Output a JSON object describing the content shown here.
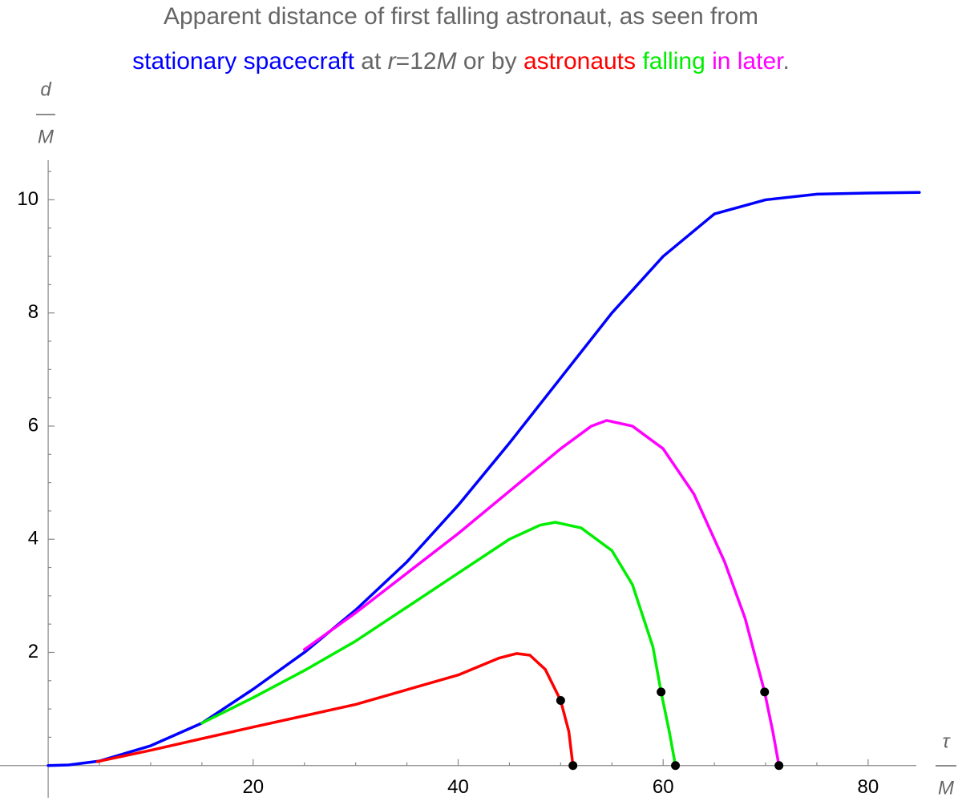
{
  "chart_data": {
    "type": "line",
    "title_lines": [
      [
        {
          "text": "Apparent distance of first falling astronaut, as seen from",
          "color": "#666666",
          "italic": false
        }
      ],
      [
        {
          "text": "stationary spacecraft",
          "color": "#0000ff",
          "italic": false
        },
        {
          "text": " at ",
          "color": "#666666",
          "italic": false
        },
        {
          "text": "r",
          "color": "#666666",
          "italic": true
        },
        {
          "text": "=12",
          "color": "#666666",
          "italic": false
        },
        {
          "text": "M",
          "color": "#666666",
          "italic": true
        },
        {
          "text": " or by ",
          "color": "#666666",
          "italic": false
        },
        {
          "text": "astronauts",
          "color": "#ff0000",
          "italic": false
        },
        {
          "text": " falling",
          "color": "#00ee00",
          "italic": false
        },
        {
          "text": " in later",
          "color": "#ff00ff",
          "italic": false
        },
        {
          "text": ".",
          "color": "#666666",
          "italic": false
        }
      ]
    ],
    "y_label": {
      "numerator": "d",
      "denominator": "M"
    },
    "x_label": {
      "numerator": "τ",
      "denominator": "M"
    },
    "xlim": [
      -4.7,
      84.7
    ],
    "ylim": [
      -0.57,
      10.7
    ],
    "xticks": [
      20,
      40,
      60,
      80
    ],
    "yticks": [
      2,
      4,
      6,
      8,
      10
    ],
    "xminorticks": [
      5,
      10,
      15,
      25,
      30,
      35,
      45,
      50,
      55,
      65,
      70,
      75
    ],
    "yminorticks": [
      0.5,
      1,
      1.5,
      2.5,
      3,
      3.5,
      4.5,
      5,
      5.5,
      6.5,
      7,
      7.5,
      8.5,
      9,
      9.5,
      10.5
    ],
    "series": [
      {
        "color": "#0000ff",
        "x": [
          0,
          2,
          5,
          10,
          15,
          20,
          25,
          30,
          35,
          40,
          45,
          50,
          55,
          60,
          65,
          70,
          75,
          80,
          85
        ],
        "values": [
          0,
          0.01,
          0.08,
          0.35,
          0.75,
          1.35,
          2.0,
          2.75,
          3.6,
          4.6,
          5.7,
          6.85,
          8.0,
          9.0,
          9.75,
          10.0,
          10.1,
          10.12,
          10.13
        ]
      },
      {
        "color": "#ff0000",
        "x": [
          4.8,
          10,
          20,
          30,
          40,
          44,
          45.7,
          47,
          48.5,
          50,
          50.8,
          51.2
        ],
        "values": [
          0.07,
          0.27,
          0.68,
          1.08,
          1.6,
          1.9,
          1.98,
          1.95,
          1.7,
          1.15,
          0.6,
          0
        ]
      },
      {
        "color": "#00ee00",
        "x": [
          15,
          20,
          25,
          30,
          35,
          40,
          45,
          48,
          49.5,
          52,
          55,
          57,
          59,
          59.8,
          60.6,
          61.2
        ],
        "values": [
          0.75,
          1.2,
          1.68,
          2.2,
          2.8,
          3.4,
          4.0,
          4.25,
          4.3,
          4.2,
          3.8,
          3.2,
          2.1,
          1.3,
          0.6,
          0
        ]
      },
      {
        "color": "#ff00ff",
        "x": [
          25,
          30,
          35,
          40,
          45,
          50,
          53,
          54.5,
          57,
          60,
          63,
          66,
          68,
          69.9,
          70.7,
          71.3
        ],
        "values": [
          2.05,
          2.7,
          3.4,
          4.1,
          4.85,
          5.6,
          6.0,
          6.1,
          6.0,
          5.6,
          4.8,
          3.6,
          2.6,
          1.3,
          0.6,
          0
        ]
      }
    ],
    "points": {
      "color": "#000000",
      "x": [
        50,
        51.2,
        59.8,
        61.2,
        69.9,
        71.3
      ],
      "values": [
        1.15,
        0,
        1.3,
        0,
        1.3,
        0
      ]
    }
  }
}
